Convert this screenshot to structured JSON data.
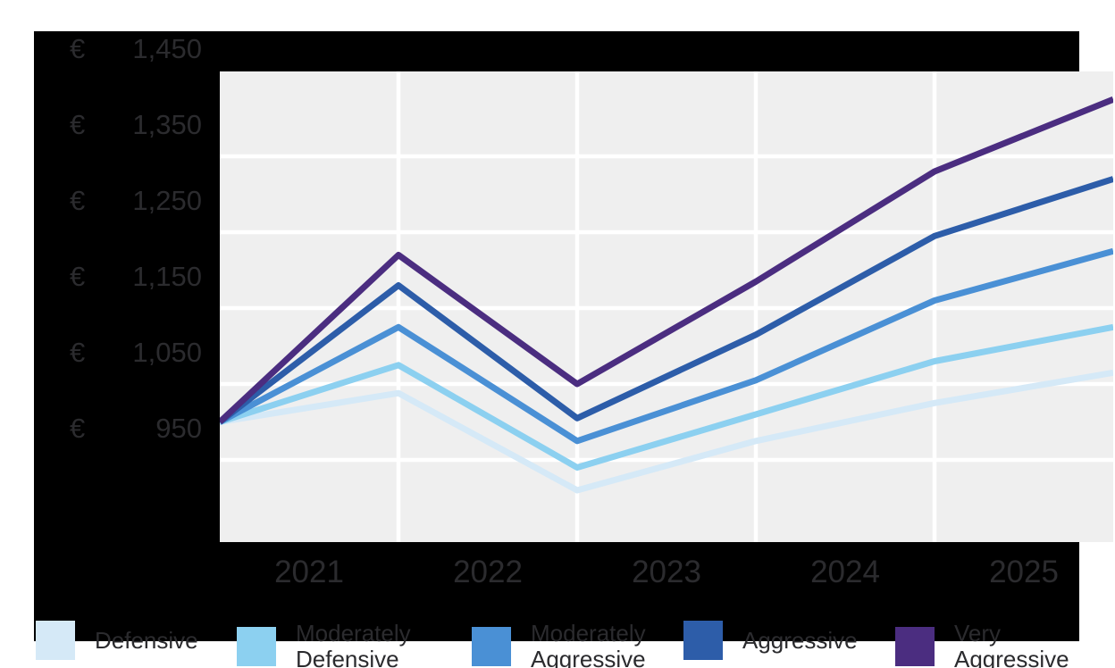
{
  "chart_data": {
    "type": "line",
    "title": "",
    "description": "Projected portfolio value in euros for five risk profiles, starting at 1000, peaking at the 2021/2022 boundary, dipping at the 2022/2023 boundary, then rising through 2025",
    "x_tick_labels": [
      "2021",
      "2022",
      "2023",
      "2024",
      "2025"
    ],
    "x_note": "series vertices fall on the plot edges and the four internal year gridlines; year labels sit centered between gridlines",
    "y_axis": {
      "currency_symbol": "€",
      "ticks": [
        1450,
        1350,
        1250,
        1150,
        1050,
        950
      ],
      "tick_format": "thousands-comma"
    },
    "ylim": [
      842,
      1462
    ],
    "grid": true,
    "legend_position": "bottom",
    "colors": {
      "panel_background": "#000000",
      "plot_background": "#EFEFEF",
      "gridline": "#FFFFFF",
      "axis_text": "#2B2B2E"
    },
    "series": [
      {
        "name": "Defensive",
        "legend_label": "Defensive",
        "color": "#D5E9F7",
        "values": [
          1000,
          1038,
          910,
          975,
          1025,
          1065
        ]
      },
      {
        "name": "Moderately Defensive",
        "legend_label": "Moderately\nDefensive",
        "color": "#8CD0F0",
        "values": [
          1000,
          1075,
          940,
          1010,
          1080,
          1125
        ]
      },
      {
        "name": "Moderately Aggressive",
        "legend_label": "Moderately\nAggressive",
        "color": "#4A90D5",
        "values": [
          1000,
          1125,
          975,
          1055,
          1160,
          1225
        ]
      },
      {
        "name": "Aggressive",
        "legend_label": "Aggressive",
        "color": "#2D5DA9",
        "values": [
          1000,
          1180,
          1005,
          1115,
          1245,
          1320
        ]
      },
      {
        "name": "Very Aggressive",
        "legend_label": "Very\nAggressive",
        "color": "#4B2D80",
        "values": [
          1000,
          1220,
          1050,
          1185,
          1330,
          1425
        ]
      }
    ]
  }
}
